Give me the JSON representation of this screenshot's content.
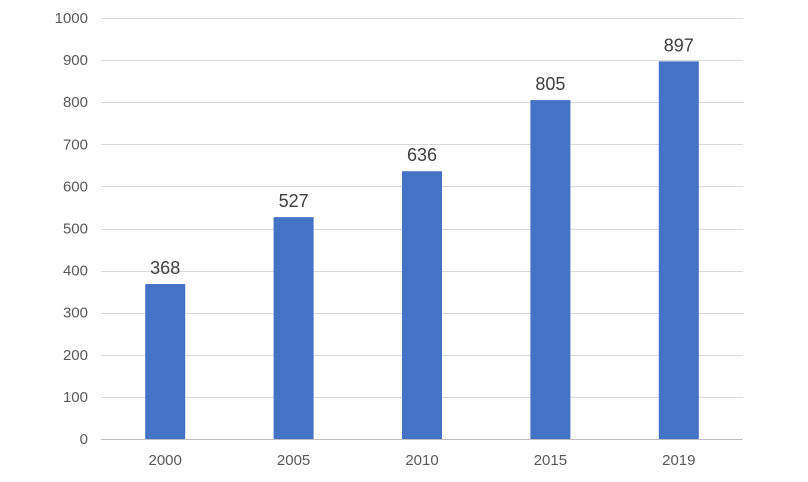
{
  "chart_data": {
    "type": "bar",
    "title": "",
    "xlabel": "",
    "ylabel": "",
    "categories": [
      "2000",
      "2005",
      "2010",
      "2015",
      "2019"
    ],
    "values": [
      368,
      527,
      636,
      805,
      897
    ],
    "ylim": [
      0,
      1000
    ],
    "y_ticks": [
      0,
      100,
      200,
      300,
      400,
      500,
      600,
      700,
      800,
      900,
      1000
    ],
    "grid": true,
    "legend": "none",
    "bar_color": "#4472c4",
    "gridline_color": "#d9d9d9",
    "tick_label_color": "#595959",
    "data_label_color": "#404040"
  }
}
